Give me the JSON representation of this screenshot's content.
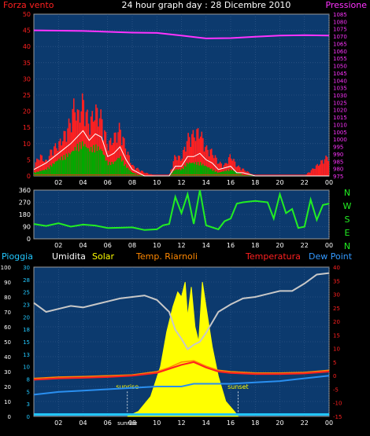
{
  "chart_data": [
    {
      "type": "bar",
      "title": "24 hour graph day : 28 Dicembre 2010",
      "left_label": "Forza vento",
      "right_label": "Pressione",
      "x_ticks": [
        "02",
        "04",
        "06",
        "08",
        "10",
        "12",
        "14",
        "16",
        "18",
        "20",
        "22",
        "00"
      ],
      "ylim_left": [
        0,
        50
      ],
      "yticks_left": [
        "0",
        "5",
        "10",
        "15",
        "20",
        "25",
        "30",
        "35",
        "40",
        "45",
        "50"
      ],
      "ylim_right": [
        975,
        1085
      ],
      "yticks_right": [
        "975",
        "980",
        "985",
        "990",
        "995",
        "1000",
        "1005",
        "1010",
        "1015",
        "1020",
        "1025",
        "1030",
        "1035",
        "1040",
        "1045",
        "1050",
        "1055",
        "1060",
        "1065",
        "1070",
        "1075",
        "1080",
        "1085"
      ],
      "pressure_series": [
        [
          0,
          45
        ],
        [
          4,
          44.8
        ],
        [
          8,
          44.3
        ],
        [
          10,
          44.2
        ],
        [
          12,
          43.4
        ],
        [
          14,
          42.5
        ],
        [
          16,
          42.6
        ],
        [
          18,
          43.0
        ],
        [
          20,
          43.4
        ],
        [
          22,
          43.5
        ],
        [
          24,
          43.4
        ]
      ],
      "gust_series": [
        [
          0,
          3
        ],
        [
          0.5,
          6
        ],
        [
          1,
          4
        ],
        [
          1.5,
          8
        ],
        [
          2,
          9
        ],
        [
          2.5,
          12
        ],
        [
          3,
          16
        ],
        [
          3.3,
          21
        ],
        [
          3.6,
          17
        ],
        [
          4,
          22
        ],
        [
          4.5,
          15
        ],
        [
          5,
          19
        ],
        [
          5.5,
          17
        ],
        [
          6,
          9
        ],
        [
          6.5,
          11
        ],
        [
          7,
          14
        ],
        [
          7.5,
          8
        ],
        [
          8,
          3
        ],
        [
          9,
          1
        ],
        [
          10,
          0
        ],
        [
          11,
          0
        ],
        [
          11.5,
          6
        ],
        [
          12,
          5
        ],
        [
          12.5,
          11
        ],
        [
          13,
          12
        ],
        [
          13.5,
          13
        ],
        [
          14,
          8
        ],
        [
          14.5,
          7
        ],
        [
          15,
          4
        ],
        [
          15.5,
          3
        ],
        [
          16,
          6
        ],
        [
          16.5,
          3
        ],
        [
          17,
          2
        ],
        [
          17.5,
          1
        ],
        [
          18,
          0
        ],
        [
          20,
          0
        ],
        [
          22,
          0
        ],
        [
          24,
          6
        ]
      ],
      "avg_series": [
        [
          0,
          2
        ],
        [
          1,
          4
        ],
        [
          2,
          7
        ],
        [
          3,
          10
        ],
        [
          3.5,
          12
        ],
        [
          4,
          14
        ],
        [
          4.5,
          11
        ],
        [
          5,
          13
        ],
        [
          5.5,
          12
        ],
        [
          6,
          6
        ],
        [
          6.5,
          7
        ],
        [
          7,
          9
        ],
        [
          7.5,
          5
        ],
        [
          8,
          2
        ],
        [
          9,
          0
        ],
        [
          11,
          0
        ],
        [
          11.5,
          3
        ],
        [
          12,
          3
        ],
        [
          12.5,
          6
        ],
        [
          13,
          6
        ],
        [
          13.5,
          7
        ],
        [
          14,
          5
        ],
        [
          14.5,
          4
        ],
        [
          15,
          2
        ],
        [
          16,
          3
        ],
        [
          16.5,
          1
        ],
        [
          17,
          1
        ],
        [
          18,
          0
        ],
        [
          24,
          0
        ]
      ],
      "mean_series": [
        [
          0,
          1
        ],
        [
          1,
          2
        ],
        [
          2,
          5
        ],
        [
          3,
          7
        ],
        [
          3.5,
          9
        ],
        [
          4,
          10
        ],
        [
          4.5,
          8
        ],
        [
          5,
          9
        ],
        [
          5.5,
          8
        ],
        [
          6,
          4
        ],
        [
          6.5,
          4
        ],
        [
          7,
          6
        ],
        [
          7.5,
          3
        ],
        [
          8,
          1
        ],
        [
          9,
          0
        ],
        [
          11,
          0
        ],
        [
          11.5,
          2
        ],
        [
          12,
          2
        ],
        [
          12.5,
          4
        ],
        [
          13,
          4
        ],
        [
          13.5,
          4
        ],
        [
          14,
          3
        ],
        [
          14.5,
          2
        ],
        [
          15,
          1
        ],
        [
          16,
          2
        ],
        [
          17,
          0.5
        ],
        [
          18,
          0
        ],
        [
          24,
          0
        ]
      ],
      "colors": {
        "wind": "#ff2020",
        "avg": "#ffffff",
        "mean": "#00aa00",
        "pressure": "#ff33ff",
        "bg": "#0c3a6e",
        "frame": "#9a9a9a"
      }
    },
    {
      "type": "line",
      "ylim": [
        0,
        360
      ],
      "yticks": [
        "0",
        "90",
        "180",
        "270",
        "360"
      ],
      "x_ticks": [
        "02",
        "04",
        "06",
        "08",
        "10",
        "12",
        "14",
        "16",
        "18",
        "20",
        "22",
        "00"
      ],
      "right_labels": [
        "N",
        "W",
        "S",
        "E",
        "N"
      ],
      "direction_series": [
        [
          0,
          110
        ],
        [
          1,
          95
        ],
        [
          2,
          115
        ],
        [
          3,
          90
        ],
        [
          4,
          105
        ],
        [
          5,
          98
        ],
        [
          6,
          80
        ],
        [
          7,
          82
        ],
        [
          8,
          85
        ],
        [
          9,
          65
        ],
        [
          10,
          70
        ],
        [
          10.5,
          100
        ],
        [
          11,
          110
        ],
        [
          11.5,
          310
        ],
        [
          12,
          190
        ],
        [
          12.5,
          330
        ],
        [
          13,
          110
        ],
        [
          13.5,
          360
        ],
        [
          14,
          100
        ],
        [
          15,
          70
        ],
        [
          15.5,
          130
        ],
        [
          16,
          150
        ],
        [
          16.5,
          260
        ],
        [
          17,
          270
        ],
        [
          18,
          280
        ],
        [
          19,
          270
        ],
        [
          19.5,
          150
        ],
        [
          20,
          330
        ],
        [
          20.5,
          190
        ],
        [
          21,
          220
        ],
        [
          21.5,
          80
        ],
        [
          22,
          90
        ],
        [
          22.5,
          290
        ],
        [
          23,
          140
        ],
        [
          23.5,
          250
        ],
        [
          24,
          260
        ]
      ],
      "colors": {
        "line": "#22ee22",
        "bg": "#0c3a6e"
      }
    },
    {
      "type": "line",
      "header_labels": [
        "Pioggia",
        "Umidita",
        "Solar",
        "Temp. Riarnoli",
        "Temperatura",
        "Dew Point"
      ],
      "header_colors": [
        "#22c8ff",
        "#ffffff",
        "#ffff00",
        "#ff8800",
        "#ff2020",
        "#3399ff"
      ],
      "yticks_humidity": [
        "0",
        "10",
        "20",
        "30",
        "40",
        "50",
        "60",
        "70",
        "80",
        "90",
        "100"
      ],
      "yticks_rain": [
        "0",
        "3",
        "5",
        "8",
        "10",
        "13",
        "15",
        "18",
        "20",
        "23",
        "25",
        "28",
        "30"
      ],
      "yticks_temp": [
        "-15",
        "-10",
        "-5",
        "0",
        "5",
        "10",
        "15",
        "20",
        "25",
        "30",
        "35",
        "40"
      ],
      "x_ticks": [
        "02",
        "04",
        "06",
        "08",
        "10",
        "12",
        "14",
        "16",
        "18",
        "20",
        "22",
        "00"
      ],
      "x_tick_sunrise": "sunrise",
      "annotations": [
        {
          "text": "sunrise",
          "x": 7.6
        },
        {
          "text": "sunset",
          "x": 16.6
        }
      ],
      "humidity_series": [
        [
          0,
          76
        ],
        [
          1,
          70
        ],
        [
          2,
          72
        ],
        [
          3,
          74
        ],
        [
          4,
          73
        ],
        [
          5,
          75
        ],
        [
          6,
          77
        ],
        [
          7,
          79
        ],
        [
          8,
          80
        ],
        [
          9,
          81
        ],
        [
          10,
          78
        ],
        [
          11,
          70
        ],
        [
          11.5,
          58
        ],
        [
          12,
          52
        ],
        [
          12.5,
          45
        ],
        [
          13,
          48
        ],
        [
          13.5,
          50
        ],
        [
          14,
          56
        ],
        [
          15,
          70
        ],
        [
          16,
          75
        ],
        [
          17,
          79
        ],
        [
          18,
          80
        ],
        [
          19,
          82
        ],
        [
          20,
          84
        ],
        [
          21,
          84
        ],
        [
          22,
          89
        ],
        [
          23,
          95
        ],
        [
          24,
          96
        ]
      ],
      "temperature_series": [
        [
          0,
          -1.5
        ],
        [
          2,
          -1
        ],
        [
          4,
          -0.8
        ],
        [
          6,
          -0.5
        ],
        [
          8,
          0
        ],
        [
          10,
          1
        ],
        [
          11,
          2.5
        ],
        [
          12,
          4
        ],
        [
          13,
          5
        ],
        [
          14,
          3
        ],
        [
          15,
          1.5
        ],
        [
          16,
          1
        ],
        [
          18,
          0.6
        ],
        [
          20,
          0.6
        ],
        [
          22,
          0.8
        ],
        [
          24,
          1.5
        ]
      ],
      "temp_r_series": [
        [
          0,
          -1
        ],
        [
          2,
          -0.5
        ],
        [
          4,
          -0.3
        ],
        [
          6,
          0
        ],
        [
          8,
          0.3
        ],
        [
          10,
          1.5
        ],
        [
          11,
          3
        ],
        [
          12,
          5
        ],
        [
          13,
          5.5
        ],
        [
          14,
          3.5
        ],
        [
          15,
          2
        ],
        [
          16,
          1.5
        ],
        [
          18,
          1
        ],
        [
          20,
          1
        ],
        [
          22,
          1.2
        ],
        [
          24,
          2
        ]
      ],
      "dewpoint_series": [
        [
          0,
          -7
        ],
        [
          2,
          -6
        ],
        [
          4,
          -5.5
        ],
        [
          6,
          -5
        ],
        [
          8,
          -4.5
        ],
        [
          10,
          -4
        ],
        [
          12,
          -4
        ],
        [
          13,
          -3
        ],
        [
          14,
          -3
        ],
        [
          16,
          -3
        ],
        [
          18,
          -2.5
        ],
        [
          20,
          -2
        ],
        [
          22,
          -1
        ],
        [
          24,
          0
        ]
      ],
      "solar_series": [
        [
          7.6,
          0
        ],
        [
          8.5,
          1
        ],
        [
          9.5,
          4
        ],
        [
          10.3,
          10
        ],
        [
          10.8,
          17
        ],
        [
          11.3,
          22
        ],
        [
          11.7,
          25
        ],
        [
          12,
          24
        ],
        [
          12.3,
          27
        ],
        [
          12.5,
          20
        ],
        [
          12.8,
          26
        ],
        [
          13.1,
          18
        ],
        [
          13.4,
          15
        ],
        [
          13.7,
          27
        ],
        [
          14,
          22
        ],
        [
          14.5,
          14
        ],
        [
          15,
          8
        ],
        [
          15.6,
          3
        ],
        [
          16.3,
          1
        ],
        [
          16.6,
          0
        ]
      ],
      "rain_series": [
        [
          0,
          0.3
        ],
        [
          24,
          0.3
        ]
      ],
      "colors": {
        "humidity": "#c8c8c8",
        "temperature": "#ff2020",
        "temp_r": "#ff8800",
        "dewpoint": "#2a8ff0",
        "solar": "#ffff00",
        "rain": "#22c8ff",
        "bg": "#0c3a6e"
      }
    }
  ]
}
